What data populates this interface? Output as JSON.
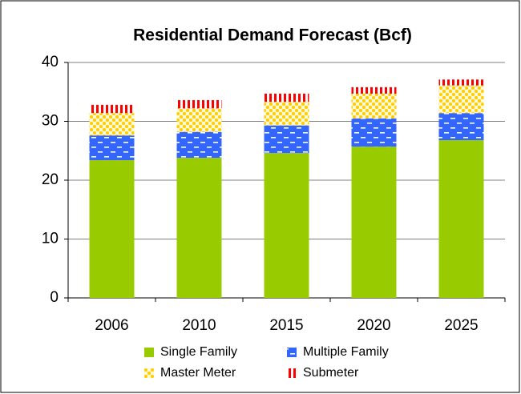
{
  "chart_data": {
    "type": "stacked_bar",
    "title": "Residential Demand Forecast (Bcf)",
    "categories": [
      "2006",
      "2010",
      "2015",
      "2020",
      "2025"
    ],
    "series": [
      {
        "name": "Single Family",
        "color": "#99cc00",
        "pattern": "solid",
        "values": [
          23.4,
          23.8,
          24.6,
          25.7,
          26.8
        ]
      },
      {
        "name": "Multiple Family",
        "color": "#3366ff",
        "pattern": "dashes",
        "values": [
          4.2,
          4.4,
          4.7,
          4.8,
          4.6
        ]
      },
      {
        "name": "Master Meter",
        "color": "#ffcc00",
        "pattern": "dots",
        "values": [
          3.8,
          4.0,
          4.0,
          4.2,
          4.7
        ]
      },
      {
        "name": "Submeter",
        "color": "#ff0000",
        "pattern": "stripes",
        "values": [
          1.4,
          1.4,
          1.4,
          1.1,
          1.0
        ]
      }
    ],
    "ylim": [
      0,
      40
    ],
    "yticks": [
      0,
      10,
      20,
      30,
      40
    ],
    "grid": true,
    "legend": "bottom"
  }
}
